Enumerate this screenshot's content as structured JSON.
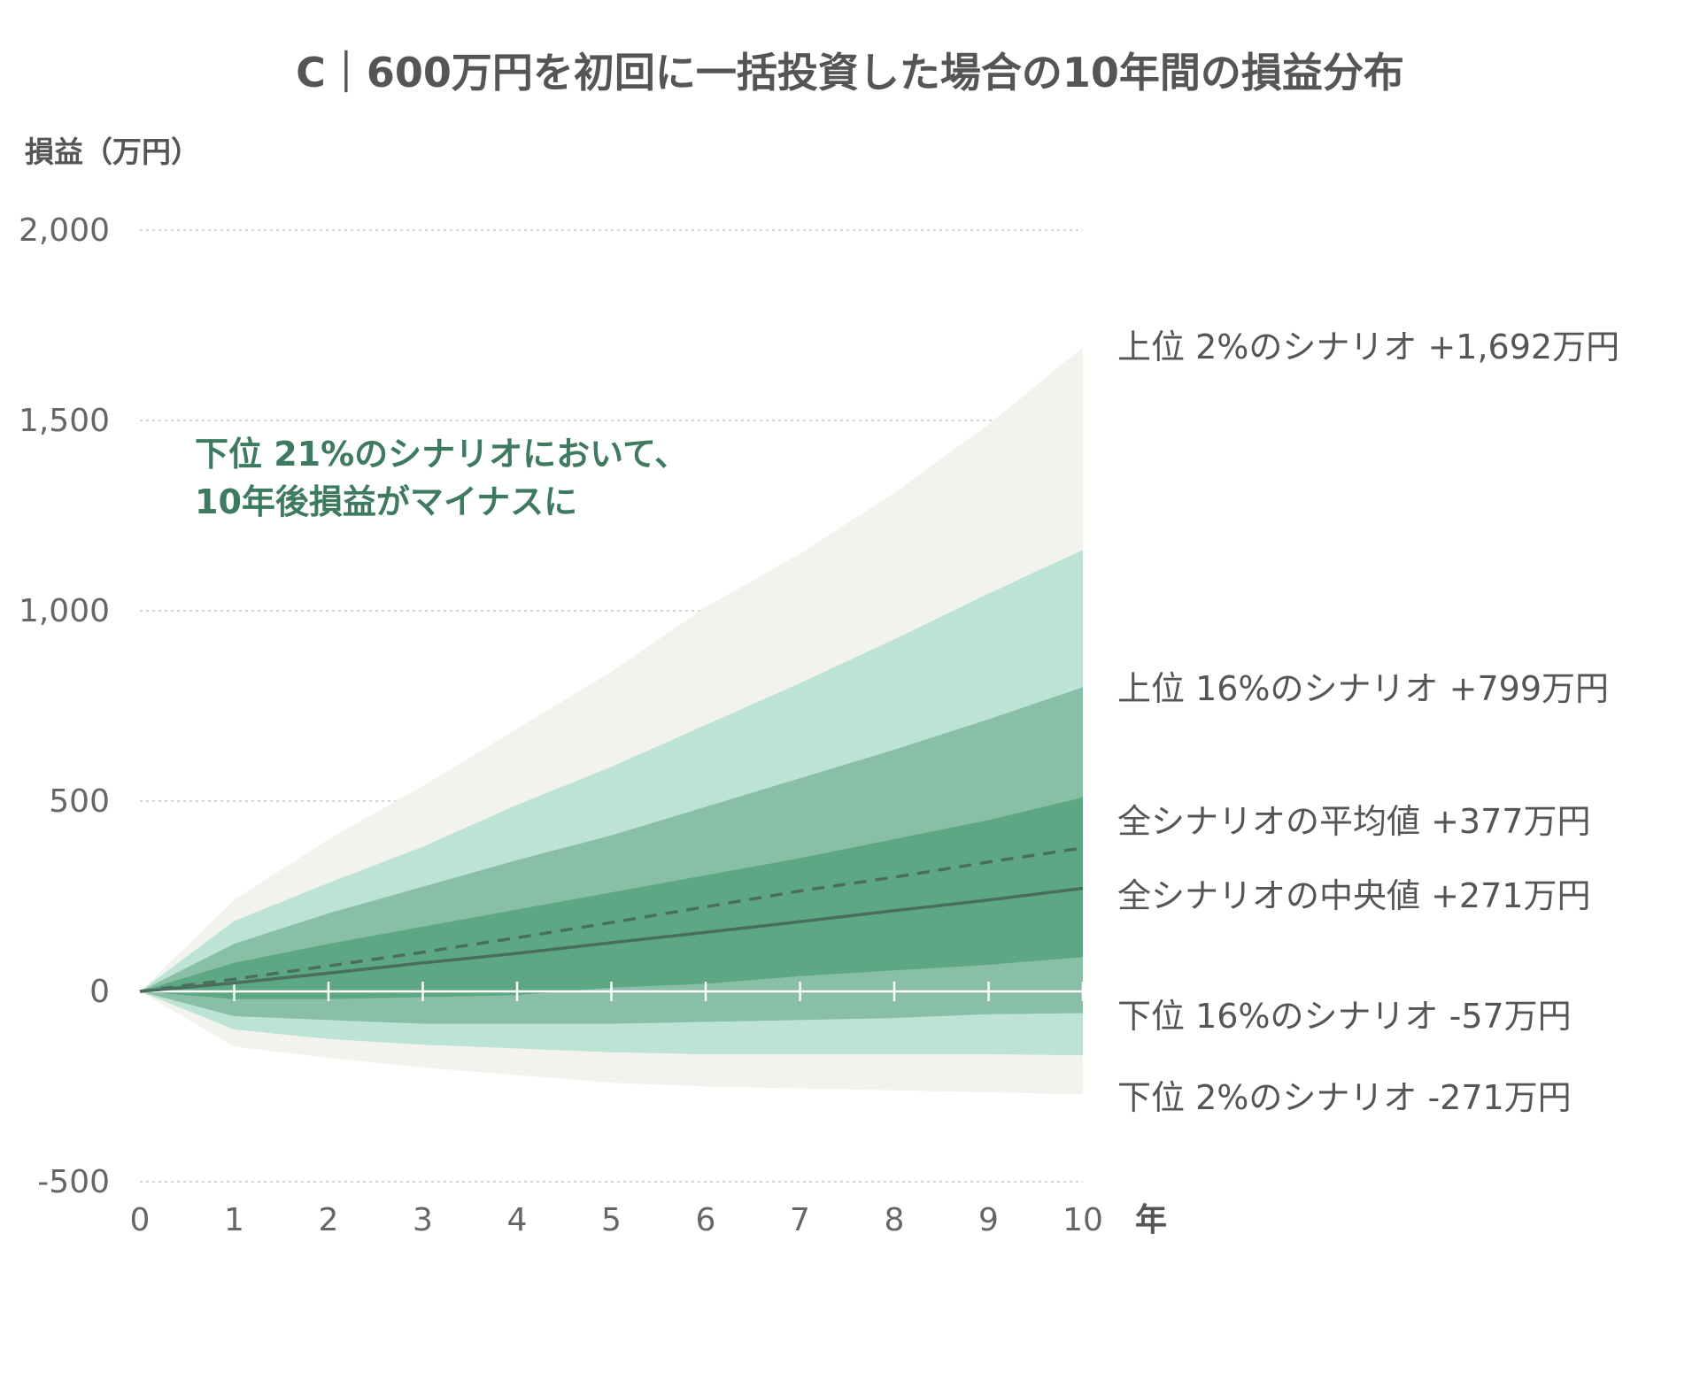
{
  "chart_data": {
    "type": "area",
    "title": "C｜600万円を初回に一括投資した場合の10年間の損益分布",
    "ylabel": "損益（万円）",
    "xunit": "年",
    "x": [
      0,
      1,
      2,
      3,
      4,
      5,
      6,
      7,
      8,
      9,
      10
    ],
    "xticks": [
      "0",
      "1",
      "2",
      "3",
      "4",
      "5",
      "6",
      "7",
      "8",
      "9",
      "10"
    ],
    "ylim": [
      -500,
      2000
    ],
    "yticks": [
      {
        "value": 2000,
        "label": "2,000"
      },
      {
        "value": 1500,
        "label": "1,500"
      },
      {
        "value": 1000,
        "label": "1,000"
      },
      {
        "value": 500,
        "label": "500"
      },
      {
        "value": 0,
        "label": "0"
      },
      {
        "value": -500,
        "label": "-500"
      }
    ],
    "grid": true,
    "bands": [
      {
        "lower": "p2",
        "upper": "p98",
        "color": "#f3f3ee"
      },
      {
        "lower": "p5",
        "upper": "p95",
        "color": "#bce3d5"
      },
      {
        "lower": "p16",
        "upper": "p84",
        "color": "#88bfa6"
      },
      {
        "lower": "p30",
        "upper": "p70",
        "color": "#5da883"
      }
    ],
    "percentiles": {
      "p98": [
        0,
        240,
        400,
        540,
        690,
        840,
        1010,
        1150,
        1310,
        1490,
        1692
      ],
      "p95": [
        0,
        185,
        285,
        380,
        490,
        590,
        700,
        810,
        925,
        1045,
        1160
      ],
      "p84": [
        0,
        125,
        205,
        275,
        345,
        410,
        485,
        560,
        635,
        715,
        799
      ],
      "p70": [
        0,
        75,
        125,
        170,
        215,
        260,
        305,
        350,
        400,
        450,
        510
      ],
      "p30": [
        0,
        -20,
        -20,
        -15,
        -10,
        10,
        20,
        40,
        55,
        70,
        90
      ],
      "p16": [
        0,
        -65,
        -75,
        -85,
        -85,
        -85,
        -80,
        -75,
        -70,
        -60,
        -57
      ],
      "p5": [
        0,
        -100,
        -125,
        -140,
        -150,
        -160,
        -165,
        -165,
        -165,
        -165,
        -168
      ],
      "p2": [
        0,
        -145,
        -175,
        -200,
        -220,
        -240,
        -250,
        -255,
        -260,
        -265,
        -271
      ]
    },
    "series": [
      {
        "name": "全シナリオの平均値",
        "style": "dashed",
        "color": "#4a6e5d",
        "values": [
          0,
          32,
          67,
          103,
          141,
          181,
          222,
          264,
          300,
          340,
          377
        ]
      },
      {
        "name": "全シナリオの中央値",
        "style": "solid",
        "color": "#4a6e5d",
        "values": [
          0,
          22,
          48,
          75,
          100,
          128,
          155,
          183,
          212,
          240,
          271
        ]
      }
    ],
    "end_labels": [
      {
        "text": "上位 2%のシナリオ +1,692万円",
        "value": 1692
      },
      {
        "text": "上位 16%のシナリオ +799万円",
        "value": 799
      },
      {
        "text": "全シナリオの平均値 +377万円",
        "value": 377
      },
      {
        "text": "全シナリオの中央値 +271万円",
        "value": 271
      },
      {
        "text": "下位 16%のシナリオ -57万円",
        "value": -57
      },
      {
        "text": "下位 2%のシナリオ -271万円",
        "value": -271
      }
    ],
    "annotation": {
      "lines": [
        "下位 21%のシナリオにおいて、",
        "10年後損益がマイナスに"
      ]
    }
  }
}
